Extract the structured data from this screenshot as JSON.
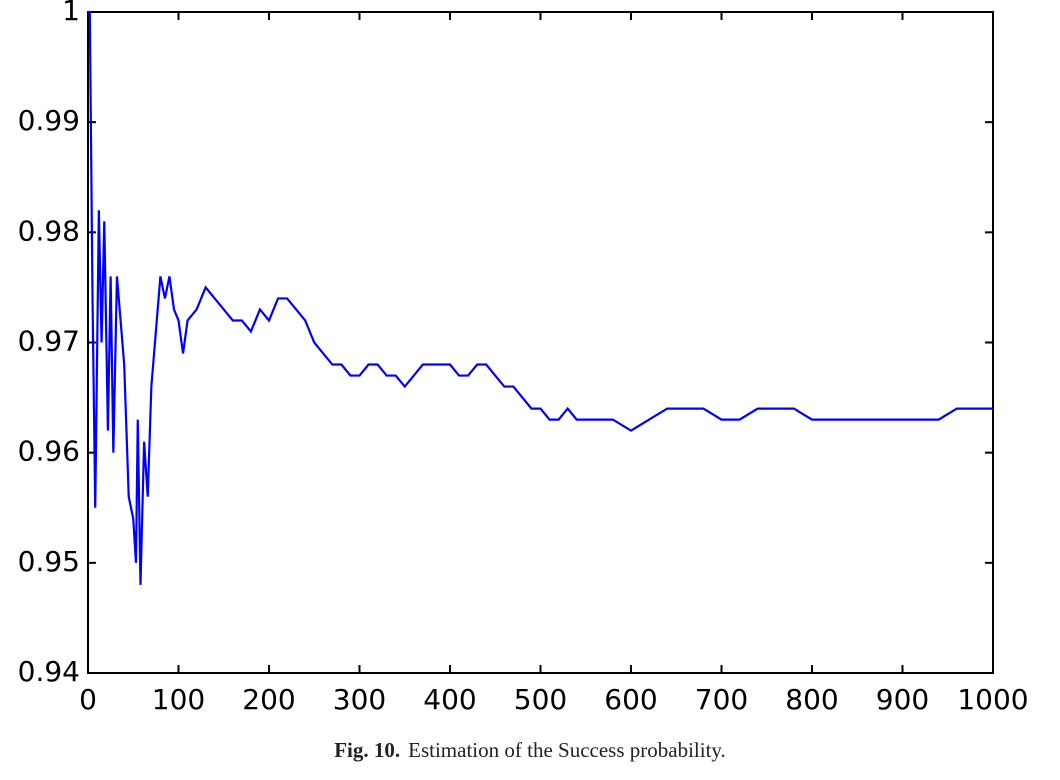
{
  "chart_data": {
    "type": "line",
    "caption_label": "Fig. 10.",
    "caption_text": "Estimation of the Success probability.",
    "x": [
      0,
      2,
      5,
      8,
      12,
      15,
      18,
      22,
      25,
      28,
      32,
      35,
      40,
      45,
      50,
      53,
      55,
      58,
      62,
      66,
      70,
      75,
      80,
      85,
      90,
      95,
      100,
      105,
      110,
      120,
      130,
      140,
      150,
      160,
      170,
      180,
      190,
      200,
      210,
      220,
      230,
      240,
      250,
      260,
      270,
      280,
      290,
      300,
      310,
      320,
      330,
      340,
      350,
      360,
      370,
      380,
      390,
      400,
      410,
      420,
      430,
      440,
      450,
      460,
      470,
      480,
      490,
      500,
      510,
      520,
      530,
      540,
      560,
      580,
      600,
      620,
      640,
      660,
      680,
      700,
      710,
      720,
      740,
      760,
      780,
      800,
      820,
      840,
      860,
      880,
      900,
      920,
      940,
      960,
      980,
      1000
    ],
    "series": [
      {
        "color": "#0000ff",
        "values": [
          1.0,
          1.0,
          0.974,
          0.955,
          0.982,
          0.97,
          0.981,
          0.962,
          0.976,
          0.96,
          0.976,
          0.973,
          0.968,
          0.956,
          0.954,
          0.95,
          0.963,
          0.948,
          0.961,
          0.956,
          0.966,
          0.971,
          0.976,
          0.974,
          0.976,
          0.973,
          0.972,
          0.969,
          0.972,
          0.973,
          0.975,
          0.974,
          0.973,
          0.972,
          0.972,
          0.971,
          0.973,
          0.972,
          0.974,
          0.974,
          0.973,
          0.972,
          0.97,
          0.969,
          0.968,
          0.968,
          0.967,
          0.967,
          0.968,
          0.968,
          0.967,
          0.967,
          0.966,
          0.967,
          0.968,
          0.968,
          0.968,
          0.968,
          0.967,
          0.967,
          0.968,
          0.968,
          0.967,
          0.966,
          0.966,
          0.965,
          0.964,
          0.964,
          0.963,
          0.963,
          0.964,
          0.963,
          0.963,
          0.963,
          0.962,
          0.963,
          0.964,
          0.964,
          0.964,
          0.963,
          0.963,
          0.963,
          0.964,
          0.964,
          0.964,
          0.963,
          0.963,
          0.963,
          0.963,
          0.963,
          0.963,
          0.963,
          0.963,
          0.964,
          0.964,
          0.964
        ]
      }
    ],
    "xlim": [
      0,
      1000
    ],
    "xticks": [
      0,
      100,
      200,
      300,
      400,
      500,
      600,
      700,
      800,
      900,
      1000
    ],
    "ylim": [
      0.94,
      1
    ],
    "yticks": [
      0.94,
      0.95,
      0.96,
      0.97,
      0.98,
      0.99,
      1
    ]
  }
}
